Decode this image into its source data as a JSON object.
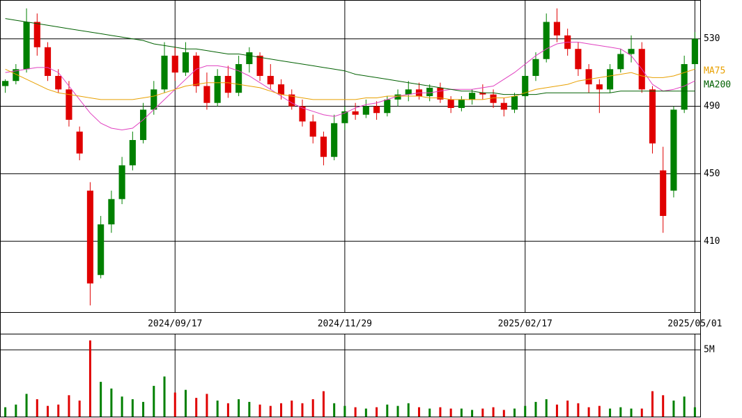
{
  "chart_data": {
    "type": "candlestick",
    "categories": [
      null,
      null,
      null,
      null,
      null,
      null,
      null,
      null,
      null,
      null,
      null,
      null,
      null,
      null,
      null,
      null,
      "2024/09/17",
      null,
      null,
      null,
      null,
      null,
      null,
      null,
      null,
      null,
      null,
      null,
      null,
      null,
      null,
      null,
      "2024/11/29",
      null,
      null,
      null,
      null,
      null,
      null,
      null,
      null,
      null,
      null,
      null,
      null,
      null,
      null,
      null,
      null,
      "2025/02/17",
      null,
      null,
      null,
      null,
      null,
      null,
      null,
      null,
      null,
      null,
      null,
      null,
      null,
      null,
      null,
      "2025/05/01"
    ],
    "open": [
      502,
      505,
      512,
      540,
      525,
      508,
      500,
      475,
      440,
      390,
      420,
      435,
      455,
      470,
      488,
      500,
      520,
      510,
      520,
      502,
      492,
      508,
      498,
      515,
      520,
      508,
      503,
      497,
      490,
      481,
      472,
      460,
      480,
      487,
      485,
      490,
      486,
      494,
      497,
      500,
      496,
      501,
      494,
      489,
      494,
      498,
      497,
      492,
      488,
      496,
      508,
      518,
      540,
      532,
      524,
      512,
      503,
      500,
      512,
      521,
      524,
      500,
      452,
      440,
      488,
      515
    ],
    "high": [
      506,
      515,
      548,
      545,
      528,
      512,
      505,
      478,
      445,
      425,
      440,
      460,
      475,
      492,
      505,
      528,
      525,
      528,
      522,
      510,
      512,
      514,
      520,
      525,
      522,
      515,
      506,
      500,
      494,
      485,
      475,
      485,
      490,
      492,
      494,
      493,
      496,
      500,
      505,
      504,
      503,
      504,
      496,
      496,
      500,
      503,
      500,
      495,
      498,
      512,
      522,
      545,
      548,
      536,
      528,
      515,
      506,
      515,
      524,
      532,
      528,
      502,
      466,
      490,
      520,
      534
    ],
    "low": [
      498,
      503,
      510,
      520,
      505,
      498,
      478,
      458,
      372,
      388,
      415,
      432,
      452,
      468,
      485,
      498,
      505,
      508,
      498,
      488,
      490,
      495,
      496,
      510,
      505,
      500,
      494,
      488,
      478,
      468,
      455,
      458,
      476,
      482,
      483,
      482,
      484,
      490,
      493,
      494,
      493,
      492,
      486,
      487,
      491,
      494,
      489,
      484,
      486,
      494,
      505,
      516,
      528,
      520,
      508,
      498,
      486,
      498,
      510,
      516,
      498,
      462,
      415,
      436,
      486,
      512
    ],
    "close": [
      505,
      512,
      540,
      525,
      508,
      500,
      482,
      462,
      385,
      420,
      435,
      455,
      470,
      488,
      500,
      520,
      510,
      522,
      502,
      492,
      508,
      498,
      515,
      522,
      508,
      503,
      497,
      490,
      481,
      472,
      460,
      480,
      487,
      485,
      490,
      486,
      494,
      497,
      500,
      496,
      501,
      494,
      489,
      494,
      498,
      497,
      492,
      488,
      496,
      508,
      518,
      540,
      532,
      524,
      512,
      503,
      500,
      512,
      521,
      524,
      500,
      468,
      425,
      488,
      515,
      530
    ],
    "up_color": "#008000",
    "down_color": "#e00000",
    "ylim": [
      368,
      553
    ],
    "yticks": [
      410,
      450,
      490,
      530
    ],
    "series": [
      {
        "color": "#e040c0",
        "values": [
          510,
          511,
          512,
          513,
          513,
          510,
          502,
          494,
          486,
          480,
          477,
          476,
          477,
          482,
          488,
          494,
          500,
          506,
          512,
          514,
          514,
          513,
          511,
          508,
          504,
          500,
          496,
          492,
          489,
          487,
          485,
          484,
          486,
          489,
          491,
          492,
          494,
          496,
          497,
          498,
          498,
          499,
          500,
          500,
          500,
          501,
          502,
          506,
          510,
          515,
          520,
          524,
          527,
          528,
          528,
          527,
          526,
          525,
          524,
          520,
          512,
          503,
          499,
          500,
          502,
          505
        ]
      },
      {
        "name": "MA75",
        "color": "#e8a000",
        "values": [
          512,
          509,
          506,
          503,
          500,
          498,
          497,
          496,
          495,
          494,
          494,
          494,
          494,
          495,
          496,
          498,
          500,
          502,
          503,
          504,
          504,
          504,
          503,
          502,
          501,
          499,
          497,
          496,
          495,
          494,
          494,
          494,
          494,
          494,
          495,
          495,
          496,
          496,
          496,
          496,
          495,
          495,
          494,
          494,
          494,
          494,
          495,
          495,
          496,
          498,
          500,
          501,
          502,
          503,
          505,
          506,
          507,
          508,
          509,
          510,
          508,
          507,
          507,
          508,
          510,
          512
        ]
      },
      {
        "name": "MA200",
        "color": "#006000",
        "values": [
          542,
          541,
          540,
          539,
          538,
          537,
          536,
          535,
          534,
          533,
          532,
          531,
          530,
          529,
          527,
          526,
          525,
          524,
          524,
          523,
          522,
          521,
          521,
          520,
          519,
          518,
          517,
          516,
          515,
          514,
          513,
          512,
          511,
          509,
          508,
          507,
          506,
          505,
          504,
          503,
          502,
          501,
          500,
          499,
          499,
          498,
          498,
          497,
          497,
          497,
          497,
          498,
          498,
          498,
          498,
          498,
          498,
          498,
          499,
          499,
          499,
          499,
          499,
          499,
          499,
          499
        ]
      }
    ],
    "volume": {
      "values": [
        700000,
        900000,
        1700000,
        1300000,
        800000,
        900000,
        1600000,
        1200000,
        5700000,
        2600000,
        2100000,
        1500000,
        1300000,
        1100000,
        2300000,
        3000000,
        1800000,
        2000000,
        1400000,
        1700000,
        1200000,
        1000000,
        1300000,
        1100000,
        900000,
        800000,
        1000000,
        1200000,
        1000000,
        1300000,
        1900000,
        1000000,
        800000,
        700000,
        600000,
        700000,
        900000,
        800000,
        1000000,
        700000,
        600000,
        700000,
        600000,
        600000,
        500000,
        600000,
        700000,
        500000,
        600000,
        800000,
        1100000,
        1300000,
        900000,
        1200000,
        1000000,
        700000,
        800000,
        600000,
        700000,
        600000,
        600000,
        1900000,
        1600000,
        1200000,
        1500000,
        700000
      ],
      "ylim": [
        0,
        6150000
      ],
      "yticks": [
        {
          "value": 5000000,
          "label": "5M"
        }
      ]
    }
  }
}
